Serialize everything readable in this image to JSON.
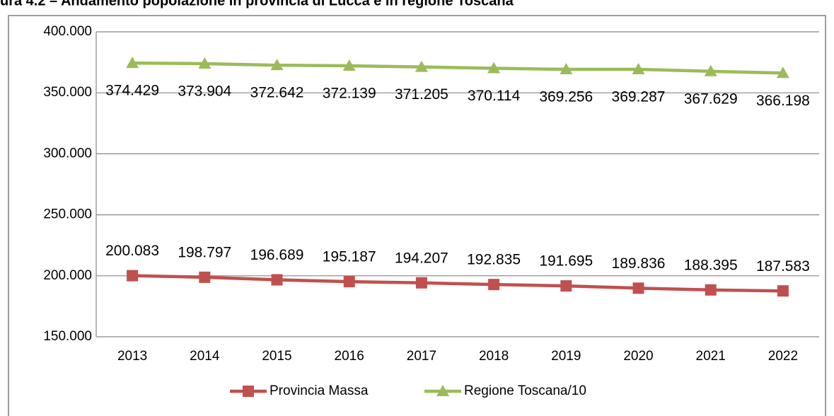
{
  "chart_data": {
    "type": "line",
    "title": "ura 4.2 – Andamento popolazione in provincia di Lucca e in regione Toscana",
    "categories": [
      "2013",
      "2014",
      "2015",
      "2016",
      "2017",
      "2018",
      "2019",
      "2020",
      "2021",
      "2022"
    ],
    "series": [
      {
        "name": "Provincia Massa",
        "color": "#c0504d",
        "marker": "square",
        "values": [
          200083,
          198797,
          196689,
          195187,
          194207,
          192835,
          191695,
          189836,
          188395,
          187583
        ],
        "value_labels": [
          "200.083",
          "198.797",
          "196.689",
          "195.187",
          "194.207",
          "192.835",
          "191.695",
          "189.836",
          "188.395",
          "187.583"
        ]
      },
      {
        "name": "Regione Toscana/10",
        "color": "#9bbb59",
        "marker": "triangle",
        "values": [
          374429,
          373904,
          372642,
          372139,
          371205,
          370114,
          369256,
          369287,
          367629,
          366198
        ],
        "value_labels": [
          "374.429",
          "373.904",
          "372.642",
          "372.139",
          "371.205",
          "370.114",
          "369.256",
          "369.287",
          "367.629",
          "366.198"
        ]
      }
    ],
    "ylim": [
      150000,
      400000
    ],
    "yticks": [
      {
        "value": 150000,
        "label": "150.000"
      },
      {
        "value": 200000,
        "label": "200.000"
      },
      {
        "value": 250000,
        "label": "250.000"
      },
      {
        "value": 300000,
        "label": "300.000"
      },
      {
        "value": 350000,
        "label": "350.000"
      },
      {
        "value": 400000,
        "label": "400.000"
      }
    ],
    "grid": true,
    "legend": "bottom"
  }
}
